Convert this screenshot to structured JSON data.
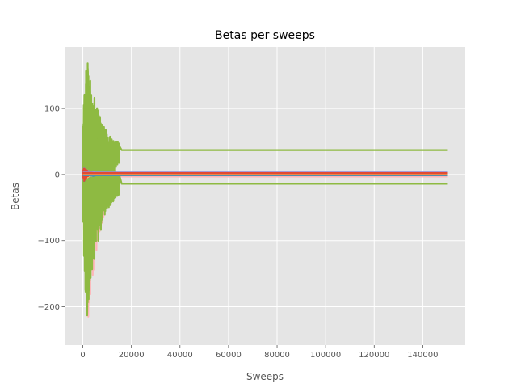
{
  "chart_data": {
    "type": "line",
    "title": "Betas per sweeps",
    "xlabel": "Sweeps",
    "ylabel": "Betas",
    "xlim": [
      -7500,
      157500
    ],
    "ylim": [
      -258,
      193
    ],
    "xticks": [
      0,
      20000,
      40000,
      60000,
      80000,
      100000,
      120000,
      140000
    ],
    "xtick_labels": [
      "0",
      "20000",
      "40000",
      "60000",
      "80000",
      "100000",
      "120000",
      "140000"
    ],
    "yticks": [
      -200,
      -100,
      0,
      100
    ],
    "ytick_labels": [
      "−200",
      "−100",
      "0",
      "100"
    ],
    "grid": true,
    "x_end": 150000,
    "background_color": "#e5e5e5",
    "grid_color": "#ffffff",
    "series": [
      {
        "color": "#ffb5b8",
        "converged": -3,
        "burn_in_amplitude": [
          -238,
          40
        ],
        "burn_in_end": 15000
      },
      {
        "color": "#8eba42",
        "converged": 37,
        "burn_in_amplitude": [
          -220,
          178
        ],
        "burn_in_end": 15000
      },
      {
        "color": "#8eba42",
        "converged": -14,
        "burn_in_amplitude": [
          -220,
          178
        ],
        "burn_in_end": 15000
      },
      {
        "color": "#988ed5",
        "converged": 3,
        "burn_in_amplitude": [
          -10,
          10
        ],
        "burn_in_end": 5000
      },
      {
        "color": "#777777",
        "converged": 1,
        "burn_in_amplitude": [
          -10,
          10
        ],
        "burn_in_end": 5000
      },
      {
        "color": "#348abd",
        "converged": -1,
        "burn_in_amplitude": [
          -10,
          10
        ],
        "burn_in_end": 5000
      },
      {
        "color": "#fbc15e",
        "converged": 0,
        "burn_in_amplitude": [
          -10,
          10
        ],
        "burn_in_end": 5000
      },
      {
        "color": "#e24a33",
        "converged": 2,
        "burn_in_amplitude": [
          -10,
          10
        ],
        "burn_in_end": 5000
      }
    ]
  }
}
